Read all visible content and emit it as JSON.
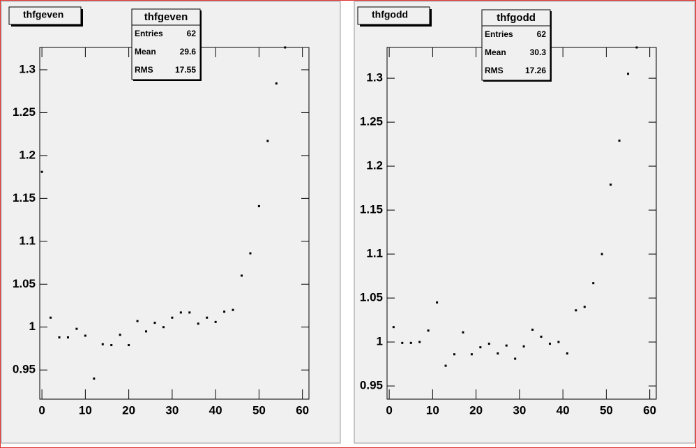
{
  "chart_data": [
    {
      "type": "scatter",
      "title": "thfgeven",
      "stats": {
        "rows": [
          [
            "Entries",
            62
          ],
          [
            "Mean",
            29.6
          ],
          [
            "RMS",
            17.55
          ]
        ]
      },
      "series": [
        {
          "color": "#000000",
          "x": [
            0,
            2,
            4,
            6,
            8,
            10,
            12,
            14,
            16,
            18,
            20,
            22,
            24,
            26,
            28,
            30,
            32,
            34,
            36,
            38,
            40,
            42,
            44,
            46,
            48,
            50,
            52,
            54,
            56
          ],
          "values": [
            1.181,
            1.011,
            0.988,
            0.988,
            0.998,
            0.99,
            0.94,
            0.98,
            0.979,
            0.991,
            0.979,
            1.007,
            0.995,
            1.005,
            1.0,
            1.011,
            1.017,
            1.017,
            1.004,
            1.011,
            1.006,
            1.018,
            1.02,
            1.06,
            1.086,
            1.141,
            1.217,
            1.284,
            1.326
          ]
        }
      ],
      "xlim": [
        -0.5,
        61.5
      ],
      "xticks": [
        0,
        10,
        20,
        30,
        40,
        50,
        60
      ],
      "ylim": [
        0.916,
        1.326
      ],
      "yticks": [
        0.95,
        1,
        1.05,
        1.1,
        1.15,
        1.2,
        1.25,
        1.3
      ]
    },
    {
      "type": "scatter",
      "title": "thfgodd",
      "stats": {
        "rows": [
          [
            "Entries",
            62
          ],
          [
            "Mean",
            30.3
          ],
          [
            "RMS",
            17.26
          ]
        ]
      },
      "series": [
        {
          "color": "#000000",
          "x": [
            1,
            3,
            5,
            7,
            9,
            11,
            13,
            15,
            17,
            19,
            21,
            23,
            25,
            27,
            29,
            31,
            33,
            35,
            37,
            39,
            41,
            43,
            45,
            47,
            49,
            51,
            53,
            55,
            57
          ],
          "values": [
            1.017,
            0.999,
            0.999,
            1.0,
            1.013,
            1.045,
            0.973,
            0.986,
            1.011,
            0.986,
            0.994,
            0.998,
            0.987,
            0.996,
            0.981,
            0.995,
            1.014,
            1.006,
            0.998,
            1.0,
            0.987,
            1.036,
            1.04,
            1.067,
            1.1,
            1.179,
            1.229,
            1.305,
            1.335
          ]
        }
      ],
      "xlim": [
        -0.5,
        61.5
      ],
      "xticks": [
        0,
        10,
        20,
        30,
        40,
        50,
        60
      ],
      "ylim": [
        0.935,
        1.335
      ],
      "yticks": [
        0.95,
        1,
        1.05,
        1.1,
        1.15,
        1.2,
        1.25,
        1.3
      ]
    }
  ]
}
